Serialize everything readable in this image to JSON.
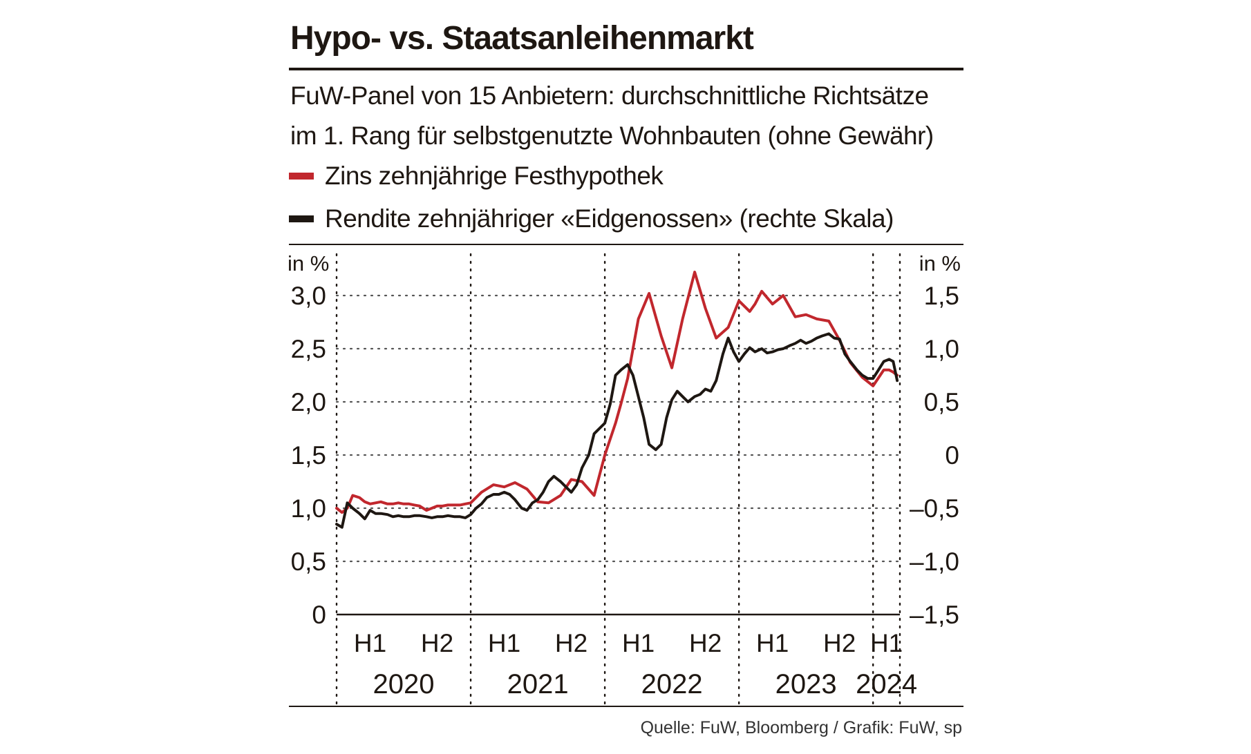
{
  "header": {
    "title": "Hypo- vs. Staatsanleihenmarkt",
    "subtitle_line1": "FuW-Panel von 15 Anbietern: durchschnittliche Richtsätze",
    "subtitle_line2": "im 1. Rang für selbstgenutzte Wohnbauten (ohne Gewähr)"
  },
  "legend": {
    "mortgage_label": "Zins zehnjährige Festhypothek",
    "bond_label": "Rendite zehnjähriger «Eidgenossen» (rechte Skala)"
  },
  "colors": {
    "mortgage": "#c1272d",
    "bond": "#1e1712",
    "grid": "#555555"
  },
  "source": "Quelle: FuW, Bloomberg / Grafik: FuW, sp",
  "chart_data": {
    "type": "line",
    "left_axis": {
      "unit_label": "in %",
      "ylim": [
        0,
        3.0
      ],
      "ticks": [
        0,
        0.5,
        1.0,
        1.5,
        2.0,
        2.5,
        3.0
      ],
      "tick_labels": [
        "0",
        "0,5",
        "1,0",
        "1,5",
        "2,0",
        "2,5",
        "3,0"
      ]
    },
    "right_axis": {
      "unit_label": "in %",
      "ylim": [
        -1.5,
        1.5
      ],
      "ticks": [
        -1.5,
        -1.0,
        -0.5,
        0,
        0.5,
        1.0,
        1.5
      ],
      "tick_labels": [
        "–1,5",
        "–1,0",
        "–0,5",
        "0",
        "0,5",
        "1,0",
        "1,5"
      ]
    },
    "x_axis": {
      "range": [
        2020.0,
        2024.2
      ],
      "half_labels": [
        {
          "label": "H1",
          "x": 2020.25
        },
        {
          "label": "H2",
          "x": 2020.75
        },
        {
          "label": "H1",
          "x": 2021.25
        },
        {
          "label": "H2",
          "x": 2021.75
        },
        {
          "label": "H1",
          "x": 2022.25
        },
        {
          "label": "H2",
          "x": 2022.75
        },
        {
          "label": "H1",
          "x": 2023.25
        },
        {
          "label": "H2",
          "x": 2023.75
        },
        {
          "label": "H1",
          "x": 2024.1
        }
      ],
      "year_labels": [
        {
          "label": "2020",
          "x": 2020.5
        },
        {
          "label": "2021",
          "x": 2021.5
        },
        {
          "label": "2022",
          "x": 2022.5
        },
        {
          "label": "2023",
          "x": 2023.5
        },
        {
          "label": "2024",
          "x": 2024.1
        }
      ],
      "year_boundaries": [
        2020.0,
        2021.0,
        2022.0,
        2023.0,
        2024.0
      ]
    },
    "grid": true,
    "series": [
      {
        "name": "Zins zehnjährige Festhypothek",
        "axis": "left",
        "x": [
          2020.0,
          2020.04,
          2020.08,
          2020.12,
          2020.17,
          2020.21,
          2020.25,
          2020.29,
          2020.33,
          2020.38,
          2020.42,
          2020.46,
          2020.5,
          2020.54,
          2020.58,
          2020.62,
          2020.67,
          2020.71,
          2020.75,
          2020.79,
          2020.83,
          2020.88,
          2020.92,
          2020.96,
          2021.0,
          2021.08,
          2021.17,
          2021.25,
          2021.33,
          2021.42,
          2021.5,
          2021.58,
          2021.67,
          2021.75,
          2021.83,
          2021.92,
          2022.0,
          2022.08,
          2022.12,
          2022.17,
          2022.25,
          2022.33,
          2022.42,
          2022.5,
          2022.58,
          2022.67,
          2022.75,
          2022.83,
          2022.92,
          2023.0,
          2023.08,
          2023.12,
          2023.17,
          2023.25,
          2023.33,
          2023.42,
          2023.5,
          2023.58,
          2023.67,
          2023.75,
          2023.83,
          2023.92,
          2024.0,
          2024.08,
          2024.12,
          2024.15,
          2024.18
        ],
        "y": [
          1.0,
          0.96,
          1.0,
          1.12,
          1.1,
          1.06,
          1.04,
          1.05,
          1.06,
          1.04,
          1.04,
          1.05,
          1.04,
          1.04,
          1.03,
          1.02,
          0.98,
          1.0,
          1.02,
          1.02,
          1.03,
          1.03,
          1.03,
          1.04,
          1.05,
          1.15,
          1.22,
          1.2,
          1.24,
          1.18,
          1.06,
          1.05,
          1.12,
          1.27,
          1.25,
          1.12,
          1.5,
          1.8,
          1.98,
          2.22,
          2.78,
          3.02,
          2.62,
          2.32,
          2.78,
          3.22,
          2.88,
          2.6,
          2.7,
          2.95,
          2.85,
          2.92,
          3.04,
          2.92,
          3.0,
          2.8,
          2.82,
          2.78,
          2.76,
          2.58,
          2.37,
          2.23,
          2.15,
          2.3,
          2.3,
          2.28,
          2.25
        ]
      },
      {
        "name": "Rendite zehnjähriger «Eidgenossen» (rechte Skala)",
        "axis": "right",
        "x": [
          2020.0,
          2020.04,
          2020.08,
          2020.12,
          2020.17,
          2020.21,
          2020.25,
          2020.29,
          2020.33,
          2020.38,
          2020.42,
          2020.46,
          2020.5,
          2020.54,
          2020.58,
          2020.62,
          2020.67,
          2020.71,
          2020.75,
          2020.79,
          2020.83,
          2020.88,
          2020.92,
          2020.96,
          2021.0,
          2021.04,
          2021.08,
          2021.12,
          2021.17,
          2021.21,
          2021.25,
          2021.29,
          2021.33,
          2021.38,
          2021.42,
          2021.46,
          2021.5,
          2021.54,
          2021.58,
          2021.62,
          2021.67,
          2021.71,
          2021.75,
          2021.79,
          2021.83,
          2021.88,
          2021.92,
          2021.96,
          2022.0,
          2022.04,
          2022.08,
          2022.12,
          2022.17,
          2022.21,
          2022.25,
          2022.29,
          2022.33,
          2022.38,
          2022.42,
          2022.46,
          2022.5,
          2022.54,
          2022.58,
          2022.62,
          2022.67,
          2022.71,
          2022.75,
          2022.79,
          2022.83,
          2022.88,
          2022.92,
          2022.96,
          2023.0,
          2023.04,
          2023.08,
          2023.12,
          2023.17,
          2023.21,
          2023.25,
          2023.29,
          2023.33,
          2023.38,
          2023.42,
          2023.46,
          2023.5,
          2023.54,
          2023.58,
          2023.62,
          2023.67,
          2023.71,
          2023.75,
          2023.79,
          2023.83,
          2023.88,
          2023.92,
          2023.96,
          2024.0,
          2024.04,
          2024.08,
          2024.12,
          2024.15,
          2024.18
        ],
        "y": [
          -0.65,
          -0.68,
          -0.45,
          -0.5,
          -0.55,
          -0.6,
          -0.52,
          -0.55,
          -0.55,
          -0.56,
          -0.58,
          -0.57,
          -0.58,
          -0.58,
          -0.57,
          -0.57,
          -0.58,
          -0.59,
          -0.58,
          -0.58,
          -0.57,
          -0.58,
          -0.58,
          -0.59,
          -0.56,
          -0.5,
          -0.46,
          -0.4,
          -0.37,
          -0.37,
          -0.35,
          -0.37,
          -0.42,
          -0.5,
          -0.52,
          -0.45,
          -0.42,
          -0.35,
          -0.25,
          -0.2,
          -0.25,
          -0.3,
          -0.35,
          -0.28,
          -0.12,
          0.0,
          0.2,
          0.25,
          0.3,
          0.48,
          0.75,
          0.8,
          0.85,
          0.75,
          0.55,
          0.35,
          0.1,
          0.05,
          0.1,
          0.35,
          0.52,
          0.6,
          0.55,
          0.5,
          0.55,
          0.57,
          0.62,
          0.6,
          0.7,
          0.95,
          1.1,
          0.97,
          0.88,
          0.95,
          1.01,
          0.97,
          1.0,
          0.96,
          0.97,
          0.99,
          1.0,
          1.03,
          1.05,
          1.08,
          1.05,
          1.07,
          1.1,
          1.12,
          1.14,
          1.1,
          1.09,
          0.95,
          0.88,
          0.8,
          0.75,
          0.72,
          0.72,
          0.8,
          0.88,
          0.9,
          0.88,
          0.7
        ]
      }
    ]
  }
}
